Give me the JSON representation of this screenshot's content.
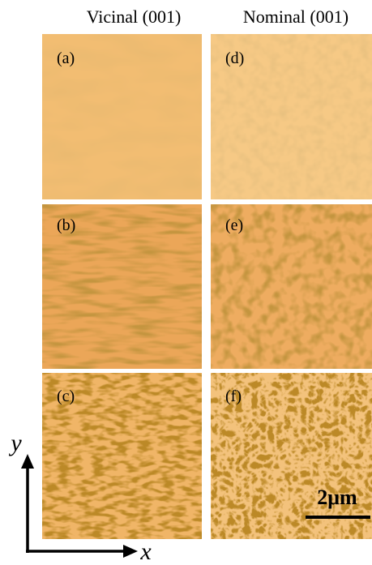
{
  "header": {
    "left": "Vicinal (001)",
    "right": "Nominal (001)"
  },
  "panels": [
    {
      "label": "(a)"
    },
    {
      "label": "(b)"
    },
    {
      "label": "(c)"
    },
    {
      "label": "(d)"
    },
    {
      "label": "(e)"
    },
    {
      "label": "(f)"
    }
  ],
  "axes": {
    "y": "y",
    "x": "x"
  },
  "scale_bar": "2μm"
}
